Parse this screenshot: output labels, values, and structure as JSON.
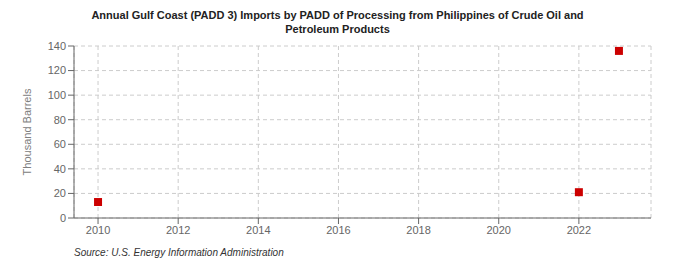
{
  "chart_data": {
    "type": "scatter",
    "title": "Annual Gulf Coast (PADD 3) Imports by PADD of Processing from Philippines of Crude Oil and\nPetroleum Products",
    "ylabel": "Thousand Barrels",
    "annotations": [
      "Source: U.S. Energy Information Administration"
    ],
    "x": [
      2010,
      2022,
      2023
    ],
    "values": [
      13,
      21,
      136
    ],
    "color": "#cc0000",
    "marker": "square",
    "xlim": [
      2009.4,
      2023.8
    ],
    "ylim": [
      0,
      140
    ],
    "xticks": [
      2010,
      2012,
      2014,
      2016,
      2018,
      2020,
      2022
    ],
    "yticks": [
      0,
      20,
      40,
      60,
      80,
      100,
      120,
      140
    ],
    "grid": true
  }
}
